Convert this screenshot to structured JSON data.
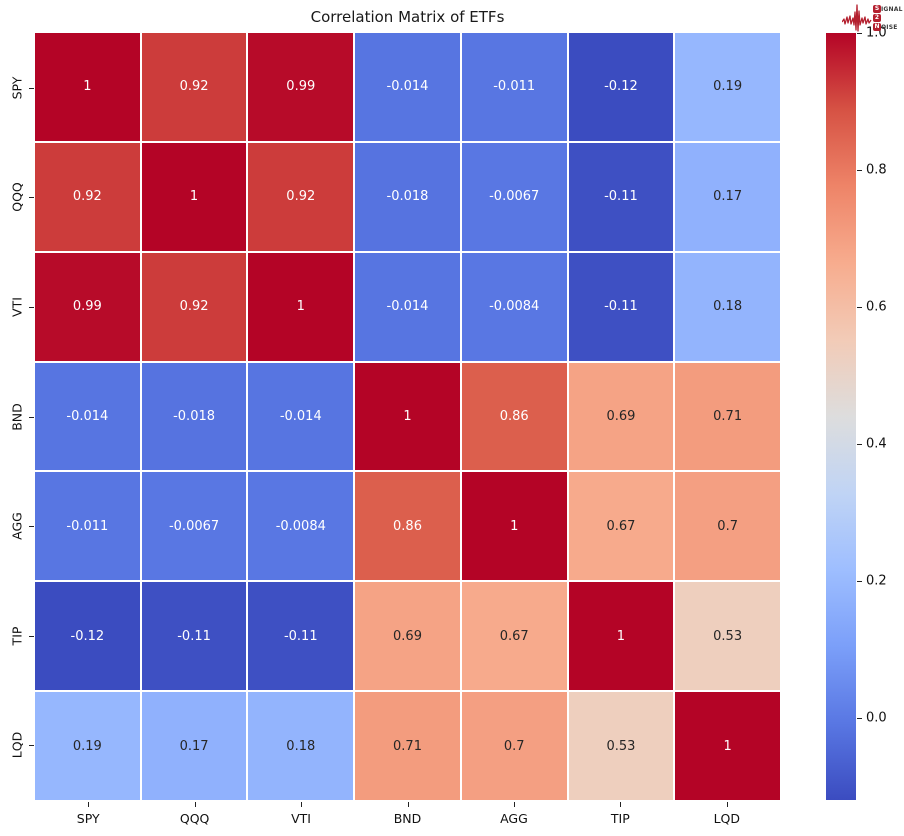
{
  "title": "Correlation Matrix of ETFs",
  "logo": {
    "signal_badge": "S",
    "signal_rest": "IGNAL",
    "two_badge": "2",
    "noise_badge": "N",
    "noise_rest": "OISE",
    "accent_color": "#b41f2e"
  },
  "chart_data": {
    "type": "heatmap",
    "title": "Correlation Matrix of ETFs",
    "x_labels": [
      "SPY",
      "QQQ",
      "VTI",
      "BND",
      "AGG",
      "TIP",
      "LQD"
    ],
    "y_labels": [
      "SPY",
      "QQQ",
      "VTI",
      "BND",
      "AGG",
      "TIP",
      "LQD"
    ],
    "cells": [
      [
        "1",
        "0.92",
        "0.99",
        "-0.014",
        "-0.011",
        "-0.12",
        "0.19"
      ],
      [
        "0.92",
        "1",
        "0.92",
        "-0.018",
        "-0.0067",
        "-0.11",
        "0.17"
      ],
      [
        "0.99",
        "0.92",
        "1",
        "-0.014",
        "-0.0084",
        "-0.11",
        "0.18"
      ],
      [
        "-0.014",
        "-0.018",
        "-0.014",
        "1",
        "0.86",
        "0.69",
        "0.71"
      ],
      [
        "-0.011",
        "-0.0067",
        "-0.0084",
        "0.86",
        "1",
        "0.67",
        "0.7"
      ],
      [
        "-0.12",
        "-0.11",
        "-0.11",
        "0.69",
        "0.67",
        "1",
        "0.53"
      ],
      [
        "0.19",
        "0.17",
        "0.18",
        "0.71",
        "0.7",
        "0.53",
        "1"
      ]
    ],
    "colormap": "coolwarm",
    "vmin": -0.12,
    "vmax": 1.0,
    "colorbar_tick_values": [
      1.0,
      0.8,
      0.6,
      0.4,
      0.2,
      0.0
    ],
    "colorbar_tick_labels": [
      "1.0",
      "0.8",
      "0.6",
      "0.4",
      "0.2",
      "0.0"
    ],
    "coolwarm_stops": [
      "#3b4cc0",
      "#5977e3",
      "#7b9ff9",
      "#9ebeff",
      "#c0d4f5",
      "#dddddd",
      "#f2cbb7",
      "#f7ac8e",
      "#ee8468",
      "#d65244",
      "#b40426"
    ],
    "annotation_dark_color": "#262626",
    "annotation_light_color": "#ffffff",
    "gridline_color": "#ffffff"
  }
}
